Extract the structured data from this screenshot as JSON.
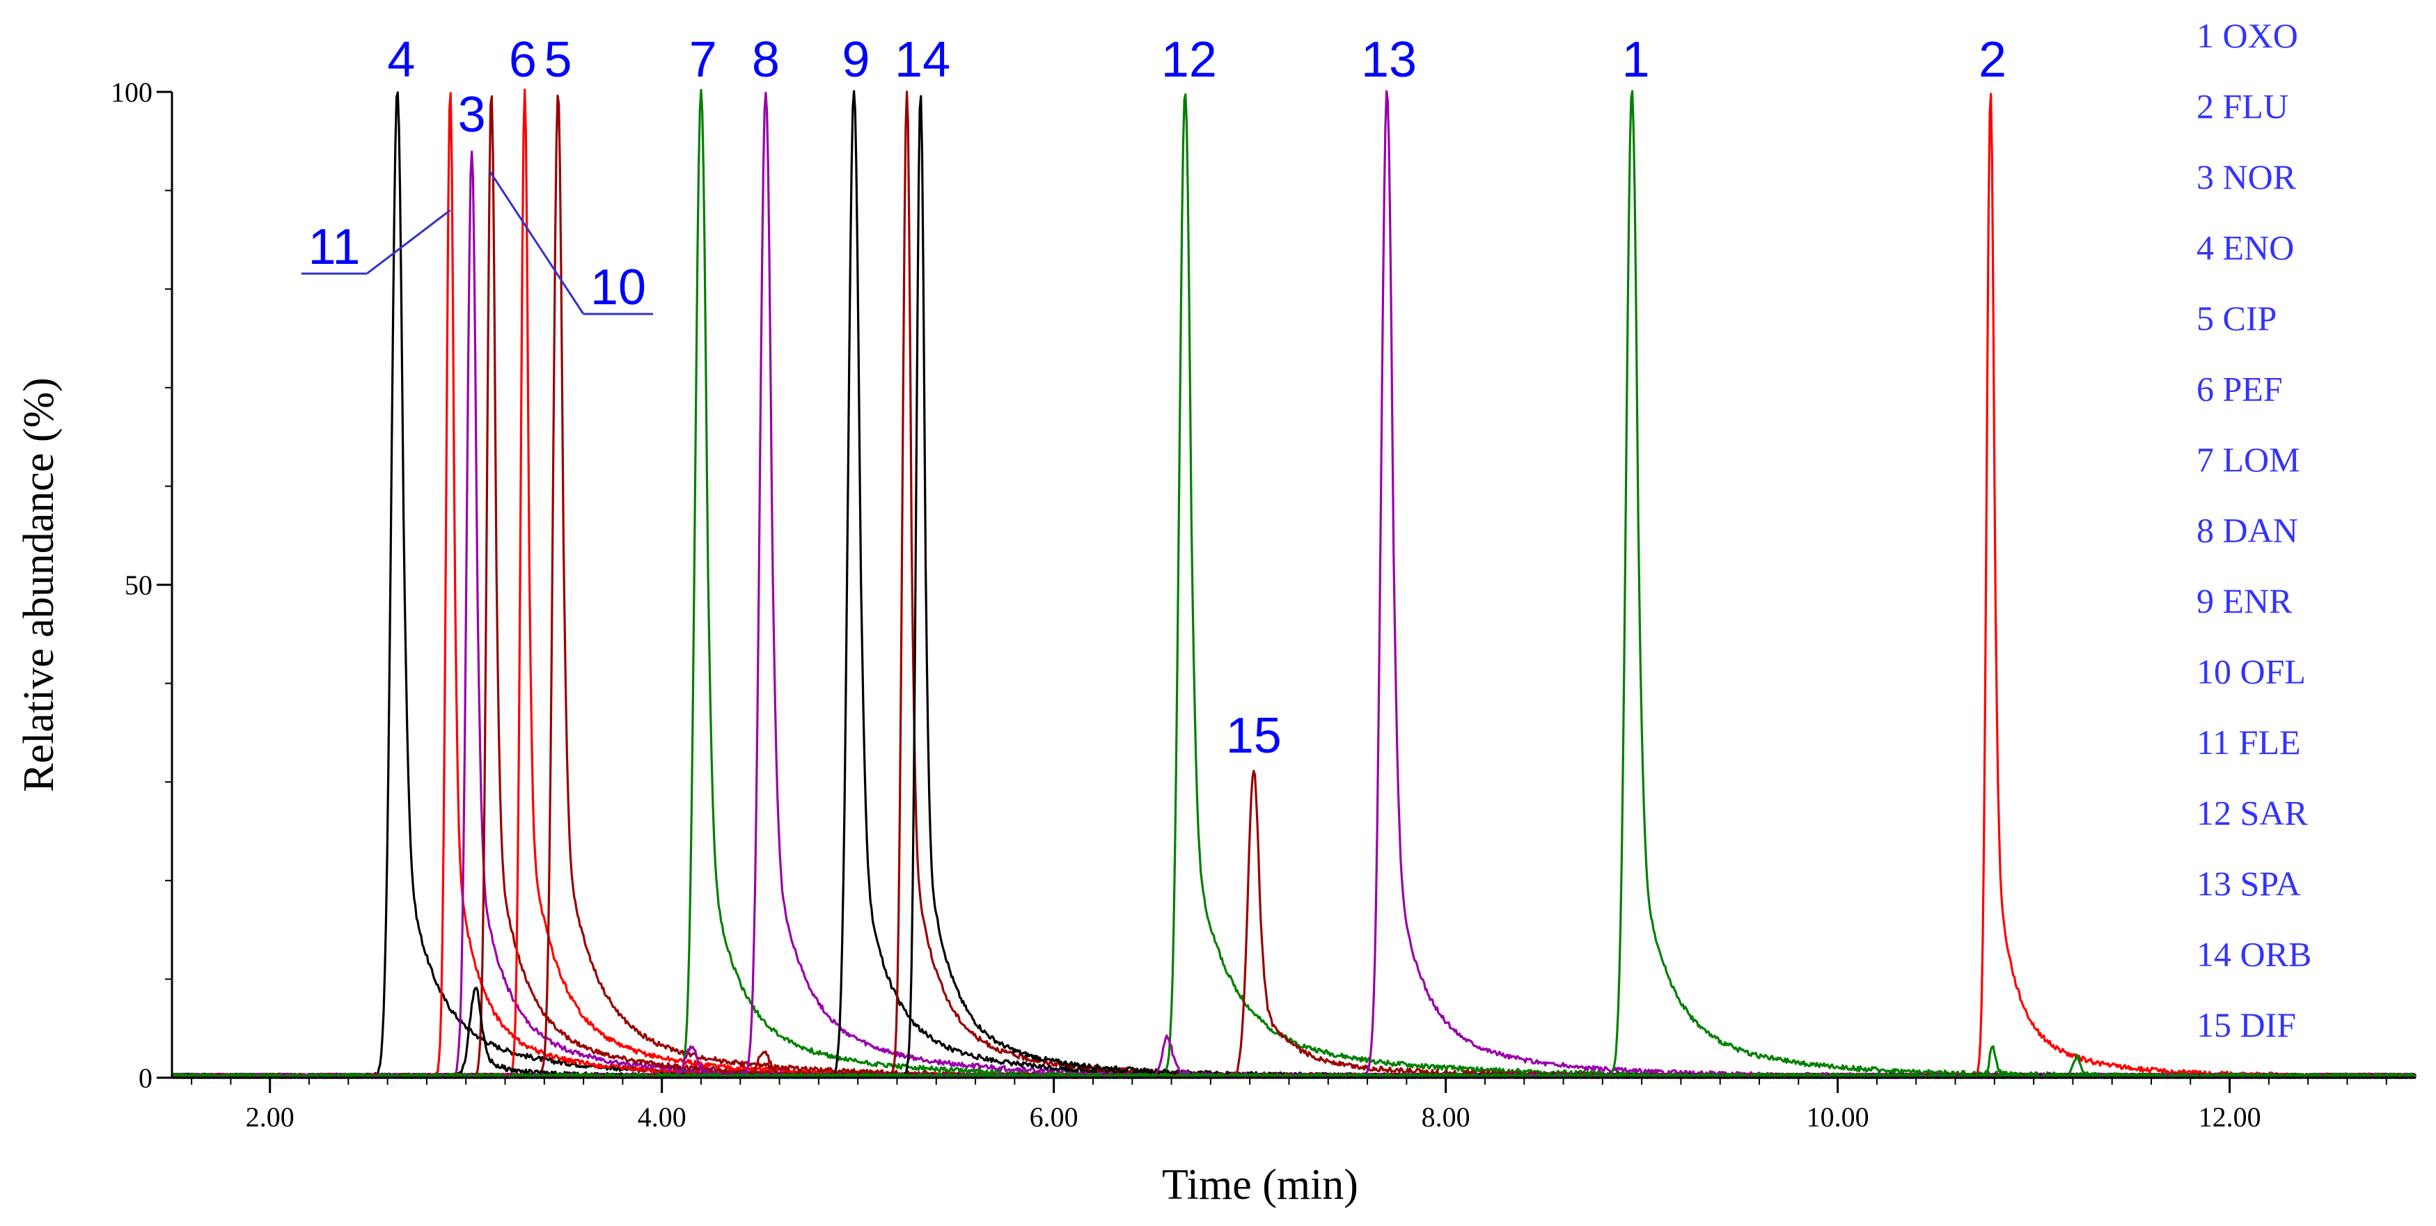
{
  "chart_data": {
    "type": "line",
    "xlabel": "Time (min)",
    "ylabel": "Relative abundance (%)",
    "xlim": [
      1.5,
      12.95
    ],
    "ylim": [
      0,
      100
    ],
    "x_ticks": [
      {
        "value": 2,
        "label": "2.00"
      },
      {
        "value": 4,
        "label": "4.00"
      },
      {
        "value": 6,
        "label": "6.00"
      },
      {
        "value": 8,
        "label": "8.00"
      },
      {
        "value": 10,
        "label": "10.00"
      },
      {
        "value": 12,
        "label": "12.00"
      }
    ],
    "y_ticks": [
      {
        "value": 0,
        "label": "0"
      },
      {
        "value": 50,
        "label": "50"
      },
      {
        "value": 100,
        "label": "100"
      }
    ],
    "colors": {
      "black": "#000000",
      "red": "#ff0000",
      "darkred": "#990000",
      "green": "#008000",
      "purple": "#9900aa",
      "label_blue": "#0000ff",
      "legend_blue": "#3333ff",
      "leader_blue": "#3333cc"
    },
    "series": [
      {
        "id": 4,
        "name": "ENO",
        "color": "black",
        "rt": 2.65,
        "height": 100,
        "sigma": 0.03,
        "tau": 0.14
      },
      {
        "id": 11,
        "name": "FLE",
        "color": "red",
        "rt": 2.92,
        "height": 100,
        "sigma": 0.02,
        "tau": 0.11
      },
      {
        "id": 3,
        "name": "NOR",
        "color": "purple",
        "rt": 3.03,
        "height": 94,
        "sigma": 0.025,
        "tau": 0.13
      },
      {
        "id": 10,
        "name": "OFL",
        "color": "darkred",
        "rt": 3.13,
        "height": 100,
        "sigma": 0.022,
        "tau": 0.13
      },
      {
        "id": 6,
        "name": "PEF",
        "color": "red",
        "rt": 3.3,
        "height": 100,
        "sigma": 0.02,
        "tau": 0.14
      },
      {
        "id": 5,
        "name": "CIP",
        "color": "darkred",
        "rt": 3.47,
        "height": 100,
        "sigma": 0.025,
        "tau": 0.15
      },
      {
        "id": 7,
        "name": "LOM",
        "color": "green",
        "rt": 4.2,
        "height": 100,
        "sigma": 0.03,
        "tau": 0.14
      },
      {
        "id": 8,
        "name": "DAN",
        "color": "purple",
        "rt": 4.53,
        "height": 100,
        "sigma": 0.03,
        "tau": 0.15
      },
      {
        "id": 9,
        "name": "ENR",
        "color": "black",
        "rt": 4.98,
        "height": 100,
        "sigma": 0.03,
        "tau": 0.13
      },
      {
        "id": 14,
        "name": "ORB",
        "color": "darkred",
        "rt": 5.25,
        "height": 100,
        "sigma": 0.022,
        "tau": 0.12
      },
      {
        "id": 12,
        "name": "SAR",
        "color": "green",
        "rt": 6.67,
        "height": 100,
        "sigma": 0.03,
        "tau": 0.17
      },
      {
        "id": 15,
        "name": "DIF",
        "color": "darkred",
        "rt": 7.02,
        "height": 31,
        "sigma": 0.03,
        "tau": 0.15
      },
      {
        "id": 13,
        "name": "SPA",
        "color": "purple",
        "rt": 7.7,
        "height": 100,
        "sigma": 0.03,
        "tau": 0.13
      },
      {
        "id": 1,
        "name": "OXO",
        "color": "green",
        "rt": 8.95,
        "height": 100,
        "sigma": 0.03,
        "tau": 0.14
      },
      {
        "id": 2,
        "name": "FLU",
        "color": "red",
        "rt": 10.78,
        "height": 100,
        "sigma": 0.02,
        "tau": 0.09
      }
    ],
    "minor_peaks": [
      {
        "color": "black",
        "rt": 5.32,
        "height": 100,
        "sigma": 0.022,
        "tau": 0.12
      },
      {
        "color": "black",
        "rt": 3.05,
        "height": 9,
        "sigma": 0.03,
        "tau": 0.1
      },
      {
        "color": "purple",
        "rt": 4.15,
        "height": 3,
        "sigma": 0.03,
        "tau": 0.06
      },
      {
        "color": "darkred",
        "rt": 4.52,
        "height": 2.5,
        "sigma": 0.03,
        "tau": 0.06
      },
      {
        "color": "purple",
        "rt": 6.58,
        "height": 4,
        "sigma": 0.025,
        "tau": 0.05
      },
      {
        "color": "green",
        "rt": 10.79,
        "height": 3,
        "sigma": 0.015,
        "tau": 0.04
      },
      {
        "color": "green",
        "rt": 11.22,
        "height": 2,
        "sigma": 0.02,
        "tau": 0.05
      }
    ],
    "peak_labels": [
      {
        "text": "4",
        "rt": 2.67
      },
      {
        "text": "3",
        "rt": 3.03
      },
      {
        "text": "6",
        "rt": 3.29
      },
      {
        "text": "5",
        "rt": 3.47
      },
      {
        "text": "7",
        "rt": 4.21
      },
      {
        "text": "8",
        "rt": 4.53
      },
      {
        "text": "9",
        "rt": 4.99
      },
      {
        "text": "14",
        "rt": 5.33
      },
      {
        "text": "12",
        "rt": 6.69
      },
      {
        "text": "13",
        "rt": 7.71
      },
      {
        "text": "1",
        "rt": 8.97
      },
      {
        "text": "2",
        "rt": 10.79
      },
      {
        "text": "15",
        "rt": 7.02
      }
    ],
    "callouts": [
      {
        "text": "11",
        "target_rt": 2.92,
        "target_y": 88
      },
      {
        "text": "10",
        "target_rt": 3.12,
        "target_y": 92
      }
    ],
    "legend": [
      "1 OXO",
      "2 FLU",
      "3 NOR",
      "4 ENO",
      "5 CIP",
      "6 PEF",
      "7 LOM",
      "8 DAN",
      "9 ENR",
      "10 OFL",
      "11 FLE",
      "12 SAR",
      "13 SPA",
      "14 ORB",
      "15 DIF"
    ]
  }
}
